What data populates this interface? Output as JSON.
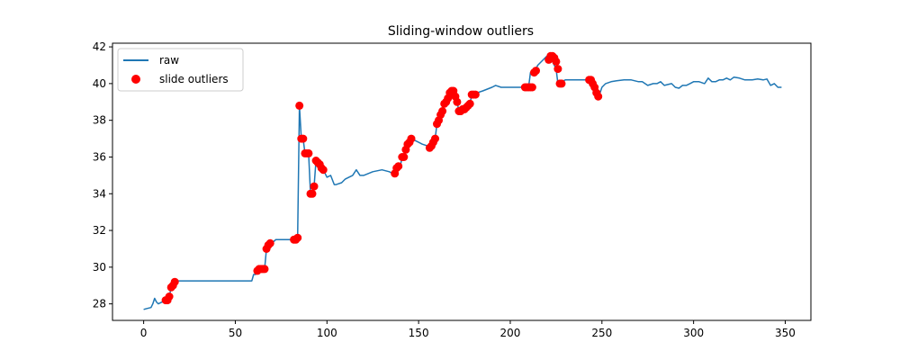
{
  "chart_data": {
    "type": "line",
    "title": "Sliding-window outliers",
    "xlabel": "",
    "ylabel": "",
    "xlim": [
      -17,
      364
    ],
    "ylim": [
      27.1,
      42.2
    ],
    "xticks": [
      0,
      50,
      100,
      150,
      200,
      250,
      300,
      350
    ],
    "yticks": [
      28,
      30,
      32,
      34,
      36,
      38,
      40,
      42
    ],
    "grid": false,
    "legend": {
      "placement": "upper-left"
    },
    "colors": {
      "raw": "#1f77b4",
      "outliers": "#ff0000"
    },
    "series": [
      {
        "name": "raw",
        "kind": "line",
        "x": [
          0,
          2,
          4,
          5,
          6,
          7,
          8,
          9,
          10,
          11,
          12,
          13,
          14,
          15,
          16,
          17,
          18,
          20,
          30,
          40,
          50,
          58,
          59,
          60,
          61,
          62,
          63,
          64,
          65,
          66,
          67,
          68,
          69,
          70,
          72,
          75,
          80,
          81,
          82,
          83,
          84,
          85,
          86,
          87,
          88,
          89,
          90,
          91,
          92,
          93,
          94,
          95,
          96,
          97,
          98,
          100,
          102,
          104,
          105,
          108,
          110,
          112,
          114,
          116,
          118,
          120,
          125,
          130,
          134,
          136,
          137,
          138,
          139,
          140,
          141,
          142,
          143,
          144,
          145,
          146,
          147,
          148,
          150,
          152,
          155,
          156,
          157,
          158,
          159,
          160,
          161,
          162,
          163,
          164,
          165,
          166,
          167,
          168,
          169,
          170,
          171,
          172,
          173,
          174,
          175,
          176,
          177,
          178,
          179,
          180,
          181,
          182,
          185,
          190,
          192,
          195,
          200,
          205,
          208,
          209,
          210,
          211,
          212,
          213,
          214,
          215,
          216,
          218,
          220,
          221,
          222,
          223,
          224,
          225,
          226,
          227,
          228,
          230,
          235,
          240,
          242,
          243,
          244,
          245,
          246,
          247,
          248,
          249,
          250,
          252,
          255,
          258,
          262,
          266,
          270,
          272,
          275,
          278,
          280,
          282,
          284,
          286,
          288,
          290,
          292,
          294,
          296,
          298,
          300,
          303,
          306,
          308,
          310,
          312,
          314,
          316,
          318,
          320,
          322,
          325,
          328,
          332,
          335,
          338,
          340,
          342,
          344,
          346,
          348
        ],
        "y": [
          27.7,
          27.75,
          27.8,
          28.0,
          28.3,
          28.1,
          28.0,
          28.05,
          28.1,
          28.2,
          28.2,
          28.4,
          28.4,
          28.9,
          29.0,
          29.2,
          29.25,
          29.25,
          29.25,
          29.25,
          29.25,
          29.25,
          29.25,
          29.6,
          29.6,
          29.8,
          29.9,
          29.9,
          29.9,
          29.9,
          31.0,
          31.2,
          31.3,
          31.3,
          31.5,
          31.5,
          31.5,
          31.5,
          31.5,
          31.6,
          31.6,
          38.8,
          37.0,
          37.0,
          36.2,
          36.2,
          36.2,
          34.0,
          34.0,
          34.4,
          35.8,
          35.7,
          35.6,
          35.4,
          35.3,
          34.9,
          35.0,
          34.5,
          34.5,
          34.6,
          34.8,
          34.9,
          35.0,
          35.3,
          35.0,
          35.0,
          35.2,
          35.3,
          35.2,
          35.1,
          35.1,
          35.4,
          35.5,
          35.5,
          36.0,
          36.0,
          36.4,
          36.7,
          36.8,
          37.0,
          37.0,
          36.9,
          36.8,
          36.7,
          36.6,
          36.5,
          36.6,
          36.8,
          37.0,
          37.8,
          38.0,
          38.3,
          38.5,
          38.9,
          39.0,
          39.2,
          39.5,
          39.6,
          39.6,
          39.3,
          39.0,
          38.5,
          38.5,
          38.6,
          38.6,
          38.7,
          38.8,
          38.9,
          39.4,
          39.4,
          39.4,
          39.5,
          39.6,
          39.8,
          39.9,
          39.8,
          39.8,
          39.8,
          39.8,
          39.8,
          39.8,
          40.6,
          40.7,
          40.8,
          40.8,
          41.0,
          41.1,
          41.3,
          41.5,
          41.5,
          41.4,
          41.2,
          41.0,
          40.8,
          40.0,
          40.0,
          40.1,
          40.2,
          40.2,
          40.2,
          40.2,
          40.2,
          40.0,
          39.8,
          39.5,
          39.3,
          39.3,
          39.5,
          39.8,
          40.0,
          40.1,
          40.15,
          40.2,
          40.2,
          40.1,
          40.1,
          39.9,
          40.0,
          40.0,
          40.1,
          39.9,
          39.95,
          40.0,
          39.8,
          39.75,
          39.9,
          39.9,
          40.0,
          40.1,
          40.1,
          40.0,
          40.3,
          40.1,
          40.1,
          40.2,
          40.2,
          40.3,
          40.2,
          40.35,
          40.3,
          40.2,
          40.2,
          40.25,
          40.2,
          40.25,
          39.9,
          40.0,
          39.8,
          39.8
        ]
      },
      {
        "name": "slide outliers",
        "kind": "scatter",
        "x": [
          12,
          13,
          14,
          15,
          16,
          17,
          62,
          63,
          64,
          65,
          66,
          67,
          68,
          69,
          82,
          83,
          84,
          85,
          86,
          87,
          88,
          89,
          90,
          91,
          92,
          93,
          94,
          95,
          96,
          97,
          98,
          137,
          138,
          139,
          141,
          142,
          143,
          144,
          145,
          146,
          156,
          157,
          158,
          159,
          160,
          161,
          162,
          163,
          164,
          165,
          166,
          167,
          168,
          169,
          170,
          171,
          172,
          173,
          174,
          175,
          176,
          177,
          178,
          179,
          180,
          181,
          208,
          209,
          210,
          211,
          212,
          213,
          214,
          221,
          222,
          223,
          224,
          225,
          226,
          227,
          228,
          243,
          244,
          245,
          246,
          247,
          248
        ],
        "y": [
          28.2,
          28.2,
          28.4,
          28.9,
          29.0,
          29.2,
          29.8,
          29.9,
          29.9,
          29.9,
          29.9,
          31.0,
          31.2,
          31.3,
          31.5,
          31.5,
          31.6,
          38.8,
          37.0,
          37.0,
          36.2,
          36.2,
          36.2,
          34.0,
          34.0,
          34.4,
          35.8,
          35.7,
          35.6,
          35.4,
          35.3,
          35.1,
          35.4,
          35.5,
          36.0,
          36.0,
          36.4,
          36.7,
          36.8,
          37.0,
          36.5,
          36.6,
          36.8,
          37.0,
          37.8,
          38.0,
          38.3,
          38.5,
          38.9,
          39.0,
          39.2,
          39.5,
          39.6,
          39.6,
          39.3,
          39.0,
          38.5,
          38.5,
          38.6,
          38.6,
          38.7,
          38.8,
          38.9,
          39.4,
          39.4,
          39.4,
          39.8,
          39.8,
          39.8,
          39.8,
          39.8,
          40.6,
          40.7,
          41.3,
          41.5,
          41.5,
          41.4,
          41.2,
          40.8,
          40.0,
          40.0,
          40.2,
          40.2,
          40.0,
          39.8,
          39.5,
          39.3
        ]
      }
    ]
  }
}
